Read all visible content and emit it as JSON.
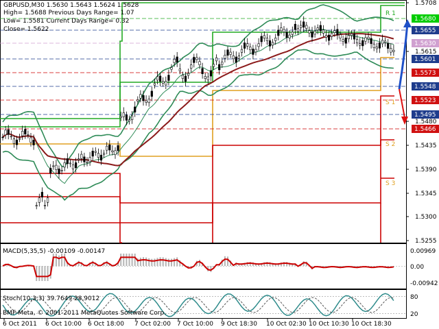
{
  "header": {
    "line1": "GBPUSD,M30  1.5630 1.5643 1.5624 1.5628",
    "line2": "High= 1.5688    Previous Days Range= 1.07",
    "line3": "Low= 1.5581    Current Days Range= 0.32",
    "line4": "Close= 1.5622"
  },
  "level_labels": [
    "R 1",
    "S 1",
    "S 2",
    "S 3"
  ],
  "price_scale": {
    "ticks": [
      "1.5708",
      "1.5615",
      "1.5480",
      "1.5435",
      "1.5390",
      "1.5345",
      "1.5300",
      "1.5255"
    ],
    "badges": [
      {
        "text": "1.5680",
        "color": "#00cc00"
      },
      {
        "text": "1.5655",
        "color": "#1e3c8c"
      },
      {
        "text": "1.5630",
        "color": "#d0a0d0"
      },
      {
        "text": "1.5601",
        "color": "#1e3c8c"
      },
      {
        "text": "1.5573",
        "color": "#d01010"
      },
      {
        "text": "1.5548",
        "color": "#1e3c8c"
      },
      {
        "text": "1.5523",
        "color": "#d01010"
      },
      {
        "text": "1.5495",
        "color": "#1e3c8c"
      },
      {
        "text": "1.5466",
        "color": "#d01010"
      }
    ]
  },
  "macd": {
    "label": "MACD(5,35,5) -0.00109 -0.00147",
    "ticks": [
      "0.00969",
      "0.00",
      "-0.00942"
    ]
  },
  "stoch": {
    "label": "Stoch(10,3,3) 39.7649 28.9012",
    "ticks": [
      "80",
      "20"
    ]
  },
  "copyright": "BMF-Meta, © 2001-2011 MetaQuotes Software Corp.",
  "time_axis": [
    "6 Oct 2011",
    "6 Oct 10:00",
    "6 Oct 18:00",
    "7 Oct 02:00",
    "7 Oct 10:00",
    "9 Oct 18:30",
    "10 Oct 02:30",
    "10 Oct 10:30",
    "10 Oct 18:30"
  ],
  "colors": {
    "background": "#ffffff",
    "candles": "#000000",
    "bollinger": "#2e8b57",
    "moving_average": "#8b1a1a",
    "resistance": "#22aa22",
    "support": "#cc0000",
    "pivot": "#e0a020",
    "macd_hist": "#b4b4b4",
    "macd_signal": "#cc0000",
    "stoch_main": "#2e8b8b",
    "arrow_up": "#1e50c8",
    "arrow_down": "#dd1111"
  }
}
